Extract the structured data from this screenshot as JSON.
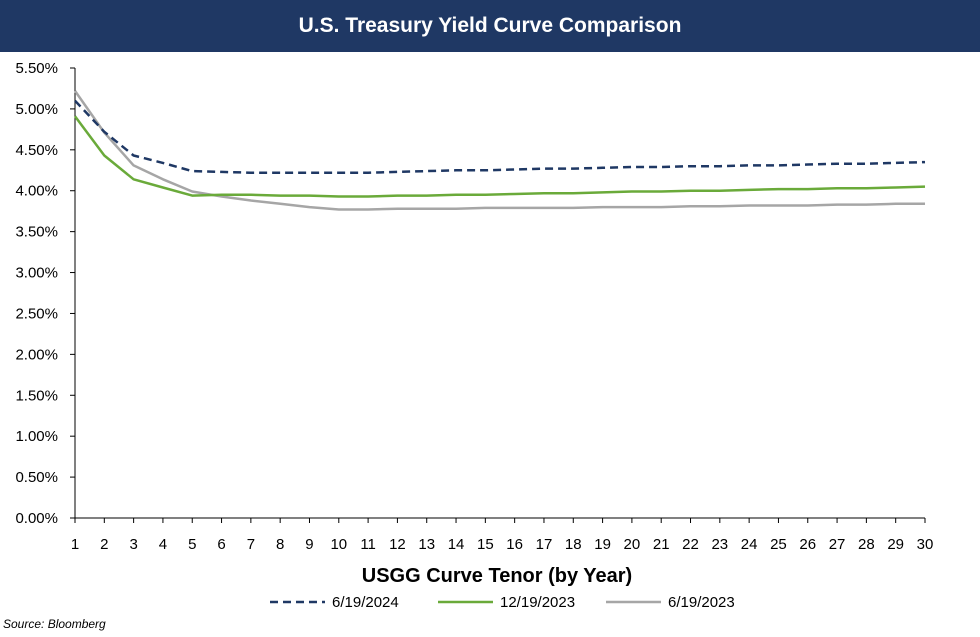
{
  "header": {
    "title": "U.S. Treasury Yield Curve Comparison"
  },
  "footer": {
    "source": "Source: Bloomberg"
  },
  "chart_data": {
    "type": "line",
    "title": "U.S. Treasury Yield Curve Comparison",
    "xlabel": "USGG Curve Tenor (by Year)",
    "ylabel": "",
    "x": [
      1,
      2,
      3,
      4,
      5,
      6,
      7,
      8,
      9,
      10,
      11,
      12,
      13,
      14,
      15,
      16,
      17,
      18,
      19,
      20,
      21,
      22,
      23,
      24,
      25,
      26,
      27,
      28,
      29,
      30
    ],
    "y_ticks": [
      "0.00%",
      "0.50%",
      "1.00%",
      "1.50%",
      "2.00%",
      "2.50%",
      "3.00%",
      "3.50%",
      "4.00%",
      "4.50%",
      "5.00%",
      "5.50%"
    ],
    "ylim": [
      0,
      5.5
    ],
    "grid": false,
    "legend_position": "bottom",
    "series": [
      {
        "name": "6/19/2024",
        "color": "#1f3864",
        "dash": "dashed",
        "values": [
          5.1,
          4.72,
          4.43,
          4.34,
          4.24,
          4.23,
          4.22,
          4.22,
          4.22,
          4.22,
          4.22,
          4.23,
          4.24,
          4.25,
          4.25,
          4.26,
          4.27,
          4.27,
          4.28,
          4.29,
          4.29,
          4.3,
          4.3,
          4.31,
          4.31,
          4.32,
          4.33,
          4.33,
          4.34,
          4.35
        ]
      },
      {
        "name": "12/19/2023",
        "color": "#6aaa3a",
        "dash": "solid",
        "values": [
          4.91,
          4.43,
          4.14,
          4.04,
          3.94,
          3.95,
          3.95,
          3.94,
          3.94,
          3.93,
          3.93,
          3.94,
          3.94,
          3.95,
          3.95,
          3.96,
          3.97,
          3.97,
          3.98,
          3.99,
          3.99,
          4.0,
          4.0,
          4.01,
          4.02,
          4.02,
          4.03,
          4.03,
          4.04,
          4.05
        ]
      },
      {
        "name": "6/19/2023",
        "color": "#a6a6a6",
        "dash": "solid",
        "values": [
          5.22,
          4.71,
          4.31,
          4.14,
          3.99,
          3.93,
          3.88,
          3.84,
          3.8,
          3.77,
          3.77,
          3.78,
          3.78,
          3.78,
          3.79,
          3.79,
          3.79,
          3.79,
          3.8,
          3.8,
          3.8,
          3.81,
          3.81,
          3.82,
          3.82,
          3.82,
          3.83,
          3.83,
          3.84,
          3.84
        ]
      }
    ]
  }
}
